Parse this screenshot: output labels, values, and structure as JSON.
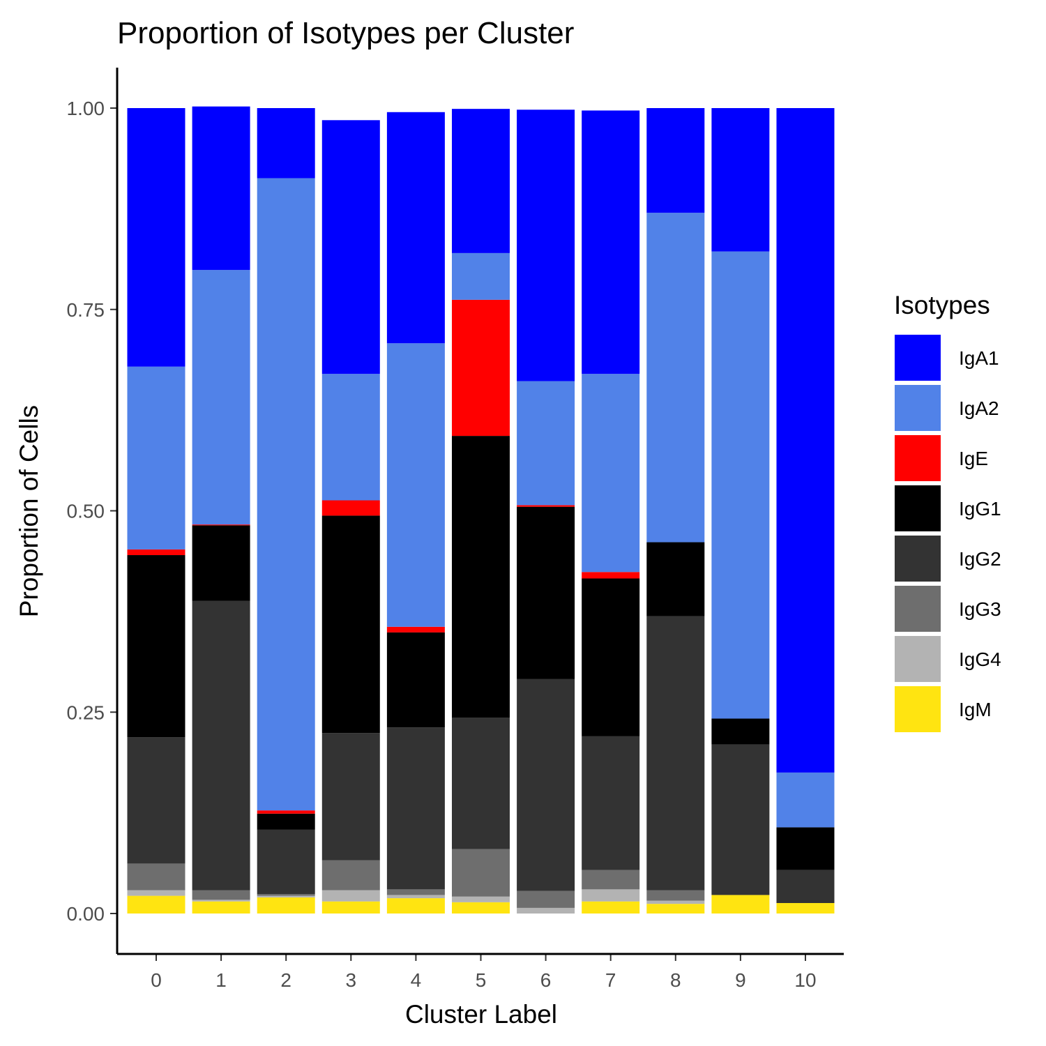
{
  "chart_data": {
    "type": "bar",
    "stacked": true,
    "title": "Proportion of Isotypes per Cluster",
    "xlabel": "Cluster Label",
    "ylabel": "Proportion of Cells",
    "ylim": [
      0,
      1
    ],
    "yticks": [
      "0.00",
      "0.25",
      "0.50",
      "0.75",
      "1.00"
    ],
    "categories": [
      "0",
      "1",
      "2",
      "3",
      "4",
      "5",
      "6",
      "7",
      "8",
      "9",
      "10"
    ],
    "legend": {
      "title": "Isotypes",
      "position": "right"
    },
    "series": [
      {
        "name": "IgA1",
        "color": "#0000FF",
        "values": [
          0.321,
          0.203,
          0.087,
          0.315,
          0.287,
          0.179,
          0.337,
          0.327,
          0.13,
          0.178,
          0.825
        ]
      },
      {
        "name": "IgA2",
        "color": "#5182E8",
        "values": [
          0.227,
          0.316,
          0.785,
          0.157,
          0.352,
          0.058,
          0.154,
          0.246,
          0.409,
          0.58,
          0.068
        ]
      },
      {
        "name": "IgE",
        "color": "#FF0000",
        "values": [
          0.007,
          0.001,
          0.004,
          0.019,
          0.007,
          0.169,
          0.002,
          0.008,
          0.0,
          0.0,
          0.0
        ]
      },
      {
        "name": "IgG1",
        "color": "#000000",
        "values": [
          0.226,
          0.094,
          0.02,
          0.27,
          0.118,
          0.35,
          0.214,
          0.196,
          0.092,
          0.032,
          0.053
        ]
      },
      {
        "name": "IgG2",
        "color": "#333333",
        "values": [
          0.157,
          0.359,
          0.08,
          0.158,
          0.201,
          0.163,
          0.263,
          0.166,
          0.34,
          0.187,
          0.041
        ]
      },
      {
        "name": "IgG3",
        "color": "#6E6E6E",
        "values": [
          0.033,
          0.012,
          0.002,
          0.037,
          0.007,
          0.059,
          0.021,
          0.024,
          0.013,
          0.0,
          0.0
        ]
      },
      {
        "name": "IgG4",
        "color": "#B3B3B3",
        "values": [
          0.007,
          0.002,
          0.002,
          0.014,
          0.004,
          0.007,
          0.007,
          0.015,
          0.004,
          0.0,
          0.0
        ]
      },
      {
        "name": "IgM",
        "color": "#FFE411",
        "values": [
          0.022,
          0.015,
          0.02,
          0.015,
          0.019,
          0.014,
          0.0,
          0.015,
          0.012,
          0.023,
          0.013
        ]
      }
    ]
  }
}
